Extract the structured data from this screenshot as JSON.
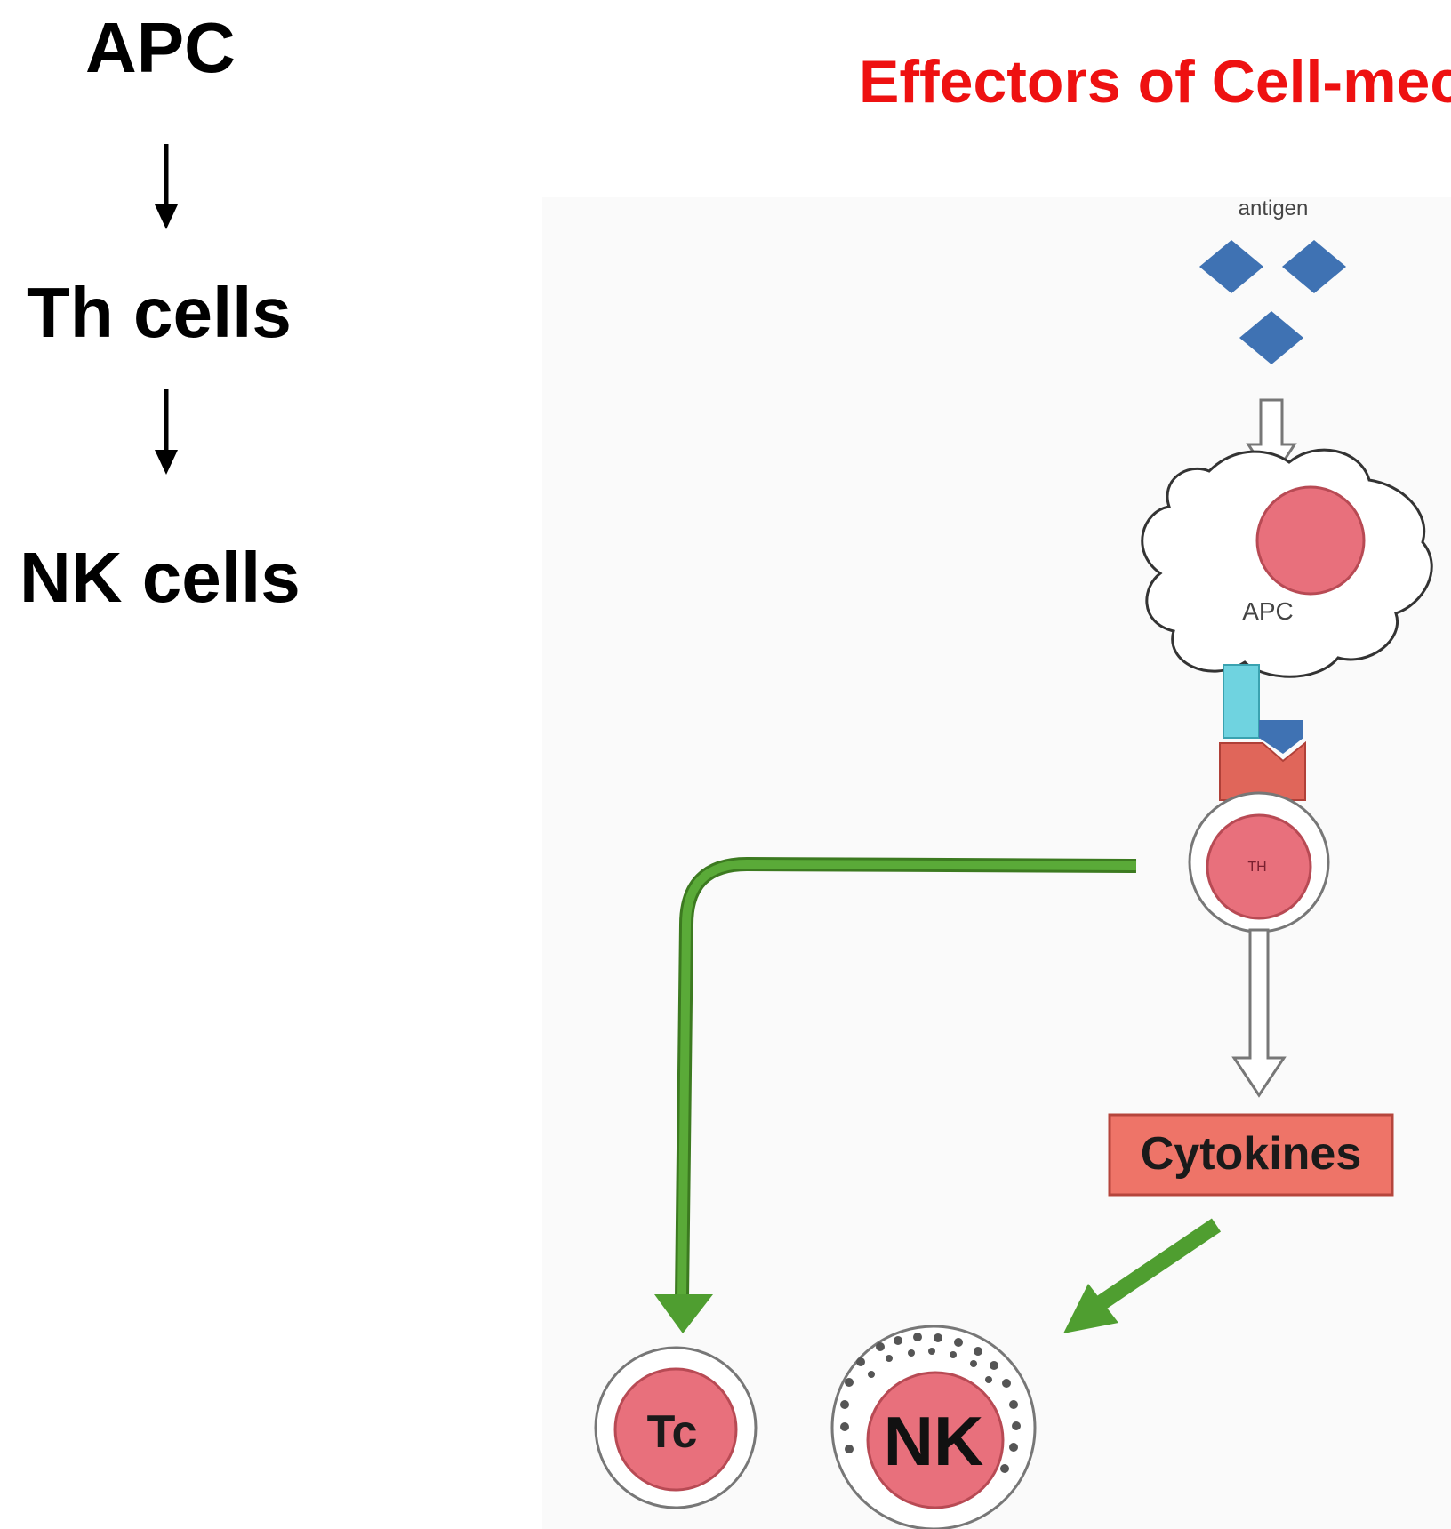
{
  "flow": {
    "step1": "APC",
    "step2": "Th cells",
    "step3": "NK cells"
  },
  "title": "Effectors of Cell-mec",
  "diagram": {
    "antigen_label": "antigen",
    "apc_label": "APC",
    "th_label": "TH",
    "cytokines_label": "Cytokines",
    "tc_label": "Tc",
    "nk_label": "NK"
  },
  "colors": {
    "title": "#ee1111",
    "antigen": "#3f72b3",
    "cell_nucleus": "#e8707c",
    "receptor_blue": "#6fd3e0",
    "receptor_red": "#e0665a",
    "green_arrow": "#4f9e30",
    "cytokines_box": "#ee7468"
  }
}
